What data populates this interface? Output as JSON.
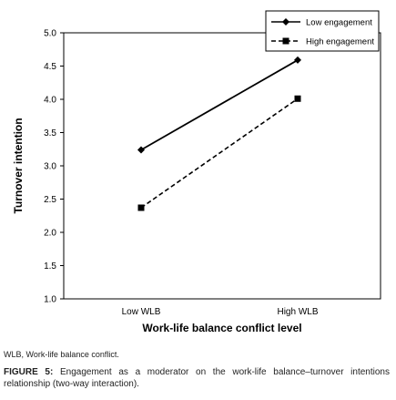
{
  "chart_data": {
    "type": "line",
    "title": "",
    "xlabel": "Work-life balance conflict level",
    "ylabel": "Turnover intention",
    "categories": [
      "Low WLB",
      "High WLB"
    ],
    "ylim": [
      1.0,
      5.0
    ],
    "yticks": [
      "1.0",
      "1.5",
      "2.0",
      "2.5",
      "3.0",
      "3.5",
      "4.0",
      "4.5",
      "5.0"
    ],
    "grid": false,
    "legend_position": "top-right",
    "series": [
      {
        "name": "Low engagement",
        "values": [
          3.24,
          4.59
        ],
        "line_style": "solid",
        "marker": "diamond",
        "color": "#000000"
      },
      {
        "name": "High engagement",
        "values": [
          2.37,
          4.01
        ],
        "line_style": "dashed",
        "marker": "square",
        "color": "#000000"
      }
    ]
  },
  "note": "WLB, Work-life balance conflict.",
  "caption": {
    "label": "FIGURE 5:",
    "text": " Engagement as a moderator on the work-life balance–turnover intentions relationship (two-way interaction)."
  }
}
